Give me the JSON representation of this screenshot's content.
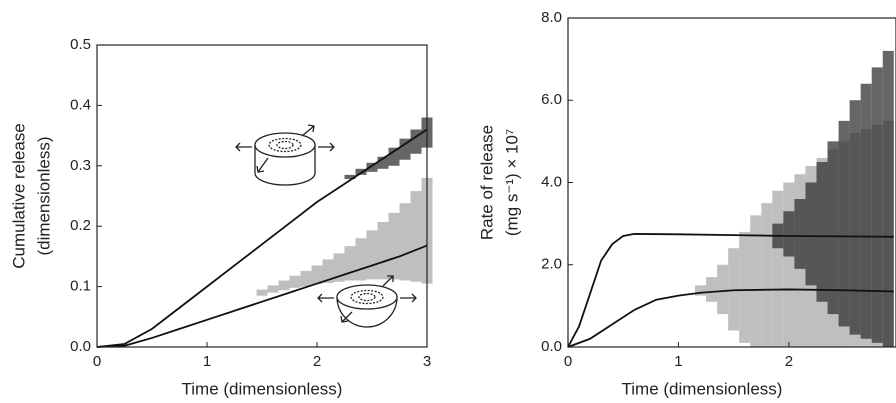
{
  "chart_data": [
    {
      "type": "line",
      "x_label": "Time (dimensionless)",
      "y_label": [
        "Cumulative release",
        "(dimensionless)"
      ],
      "xlim": [
        0,
        3
      ],
      "ylim": [
        0,
        0.5
      ],
      "xticks": [
        0,
        1,
        2,
        3
      ],
      "yticks": [
        {
          "value": 0,
          "label": "0.0"
        },
        {
          "value": 0.1,
          "label": "0.1"
        },
        {
          "value": 0.2,
          "label": "0.2"
        },
        {
          "value": 0.3,
          "label": "0.3"
        },
        {
          "value": 0.4,
          "label": "0.4"
        },
        {
          "value": 0.5,
          "label": "0.5"
        }
      ],
      "bands": [
        {
          "color": "#aaaaaa",
          "x": [
            1.5,
            1.6,
            1.7,
            1.8,
            1.9,
            2.0,
            2.1,
            2.2,
            2.3,
            2.4,
            2.5,
            2.6,
            2.7,
            2.8,
            2.9,
            3.0
          ],
          "low": [
            0.085,
            0.09,
            0.094,
            0.098,
            0.1,
            0.104,
            0.106,
            0.108,
            0.11,
            0.11,
            0.112,
            0.112,
            0.112,
            0.11,
            0.108,
            0.105
          ],
          "high": [
            0.095,
            0.102,
            0.11,
            0.118,
            0.126,
            0.135,
            0.145,
            0.155,
            0.167,
            0.18,
            0.193,
            0.207,
            0.222,
            0.238,
            0.258,
            0.28
          ]
        },
        {
          "color": "#333333",
          "x": [
            2.3,
            2.4,
            2.5,
            2.6,
            2.7,
            2.8,
            2.9,
            3.0
          ],
          "low": [
            0.278,
            0.285,
            0.29,
            0.295,
            0.3,
            0.31,
            0.32,
            0.33
          ],
          "high": [
            0.285,
            0.295,
            0.305,
            0.315,
            0.33,
            0.345,
            0.36,
            0.38
          ]
        }
      ],
      "series": [
        {
          "color": "#111111",
          "x": [
            0,
            0.25,
            0.5,
            0.75,
            1,
            1.25,
            1.5,
            1.75,
            2,
            2.25,
            2.5,
            2.75,
            3
          ],
          "values": [
            0,
            0.005,
            0.03,
            0.065,
            0.1,
            0.135,
            0.17,
            0.205,
            0.24,
            0.27,
            0.3,
            0.33,
            0.36
          ]
        },
        {
          "color": "#111111",
          "x": [
            0,
            0.25,
            0.5,
            0.75,
            1,
            1.25,
            1.5,
            1.75,
            2,
            2.25,
            2.5,
            2.75,
            3
          ],
          "values": [
            0,
            0.002,
            0.015,
            0.03,
            0.045,
            0.06,
            0.075,
            0.09,
            0.105,
            0.12,
            0.135,
            0.15,
            0.168
          ]
        }
      ]
    },
    {
      "type": "line",
      "x_label": "Time (dimensionless)",
      "y_label": [
        "Rate of release",
        "(mg s⁻¹) × 10⁷"
      ],
      "xlim": [
        0,
        2.97
      ],
      "ylim": [
        0,
        8
      ],
      "xticks": [
        0,
        1,
        2
      ],
      "yticks": [
        {
          "value": 0,
          "label": "0.0"
        },
        {
          "value": 2,
          "label": "2.0"
        },
        {
          "value": 4,
          "label": "4.0"
        },
        {
          "value": 6,
          "label": "6.0"
        },
        {
          "value": 8,
          "label": "8.0"
        }
      ],
      "bands": [
        {
          "color": "#aaaaaa",
          "x": [
            1.2,
            1.3,
            1.4,
            1.5,
            1.6,
            1.7,
            1.8,
            1.9,
            2.0,
            2.1,
            2.2,
            2.3,
            2.4,
            2.5,
            2.6,
            2.7,
            2.8,
            2.9
          ],
          "low": [
            1.25,
            1.1,
            0.8,
            0.4,
            0.1,
            0,
            0,
            0,
            0,
            0,
            0,
            0,
            0,
            0,
            0,
            0,
            0,
            0
          ],
          "high": [
            1.5,
            1.7,
            2.0,
            2.4,
            2.8,
            3.2,
            3.5,
            3.8,
            4.0,
            4.2,
            4.4,
            4.6,
            4.8,
            5.0,
            5.2,
            5.3,
            5.4,
            5.5
          ]
        },
        {
          "color": "#333333",
          "x": [
            1.9,
            2.0,
            2.1,
            2.2,
            2.3,
            2.4,
            2.5,
            2.6,
            2.7,
            2.8,
            2.9
          ],
          "low": [
            2.4,
            2.2,
            1.9,
            1.5,
            1.1,
            0.8,
            0.5,
            0.3,
            0.2,
            0.1,
            0
          ],
          "high": [
            3.0,
            3.3,
            3.6,
            4.0,
            4.5,
            5.0,
            5.5,
            6.0,
            6.4,
            6.8,
            7.2
          ]
        }
      ],
      "series": [
        {
          "color": "#111111",
          "x": [
            0,
            0.1,
            0.2,
            0.3,
            0.4,
            0.5,
            0.6,
            1,
            1.5,
            2,
            2.5,
            2.95
          ],
          "values": [
            0,
            0.5,
            1.3,
            2.1,
            2.5,
            2.7,
            2.75,
            2.74,
            2.72,
            2.7,
            2.69,
            2.68
          ]
        },
        {
          "color": "#111111",
          "x": [
            0,
            0.2,
            0.4,
            0.6,
            0.8,
            1.0,
            1.2,
            1.5,
            2,
            2.5,
            2.95
          ],
          "values": [
            0,
            0.2,
            0.55,
            0.9,
            1.15,
            1.25,
            1.32,
            1.38,
            1.4,
            1.38,
            1.35
          ]
        }
      ]
    }
  ]
}
